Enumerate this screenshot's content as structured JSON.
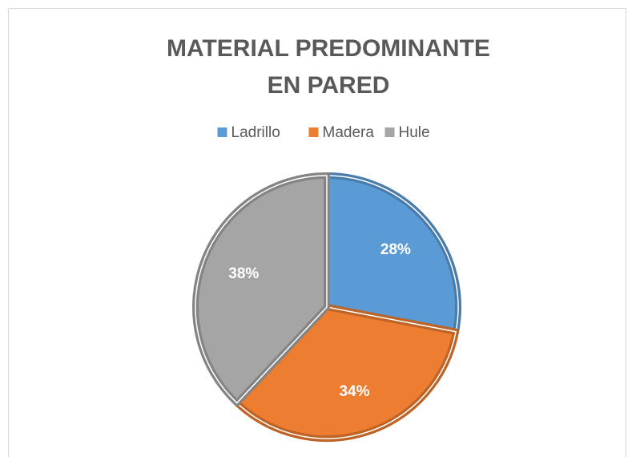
{
  "chart_data": {
    "type": "pie",
    "title": "MATERIAL PREDOMINANTE EN PARED",
    "categories": [
      "Ladrillo",
      "Madera",
      "Hule"
    ],
    "values": [
      28,
      34,
      38
    ],
    "value_labels": [
      "28%",
      "34%",
      "38%"
    ],
    "colors": [
      "#5b9bd5",
      "#ed7d31",
      "#a5a5a5"
    ],
    "legend": "top"
  }
}
